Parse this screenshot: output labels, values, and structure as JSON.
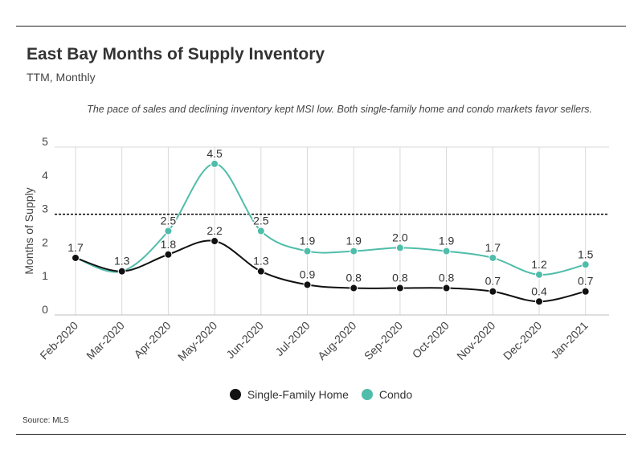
{
  "header": {
    "title": "East Bay Months of Supply Inventory",
    "subtitle": "TTM, Monthly",
    "note": "The pace of sales and declining inventory kept MSI low. Both single-family home and condo markets favor sellers."
  },
  "footer": {
    "source": "Source:  MLS"
  },
  "colors": {
    "sfh": "#111111",
    "condo": "#4fbdaa",
    "grid": "#d9d9d9",
    "reference": "#000000"
  },
  "chart_data": {
    "type": "line",
    "title": "East Bay Months of Supply Inventory",
    "subtitle": "TTM, Monthly",
    "ylabel": "Months of Supply",
    "xlabel": "",
    "ylim": [
      0,
      5
    ],
    "yticks": [
      "0",
      "1",
      "2",
      "3",
      "4",
      "5"
    ],
    "reference_line": 3,
    "grid": "vertical",
    "legend_position": "bottom",
    "categories": [
      "Feb-2020",
      "Mar-2020",
      "Apr-2020",
      "May-2020",
      "Jun-2020",
      "Jul-2020",
      "Aug-2020",
      "Sep-2020",
      "Oct-2020",
      "Nov-2020",
      "Dec-2020",
      "Jan-2021"
    ],
    "series": [
      {
        "name": "Single-Family Home",
        "values": [
          1.7,
          1.3,
          1.8,
          2.2,
          1.3,
          0.9,
          0.8,
          0.8,
          0.8,
          0.7,
          0.4,
          0.7
        ],
        "labels": [
          "1.7",
          "1.3",
          "1.8",
          "2.2",
          "1.3",
          "0.9",
          "0.8",
          "0.8",
          "0.8",
          "0.7",
          "0.4",
          "0.7"
        ]
      },
      {
        "name": "Condo",
        "values": [
          1.7,
          1.3,
          2.5,
          4.5,
          2.5,
          1.9,
          1.9,
          2.0,
          1.9,
          1.7,
          1.2,
          1.5
        ],
        "labels": [
          "",
          "",
          "2.5",
          "4.5",
          "2.5",
          "1.9",
          "1.9",
          "2.0",
          "1.9",
          "1.7",
          "1.2",
          "1.5"
        ]
      }
    ]
  }
}
